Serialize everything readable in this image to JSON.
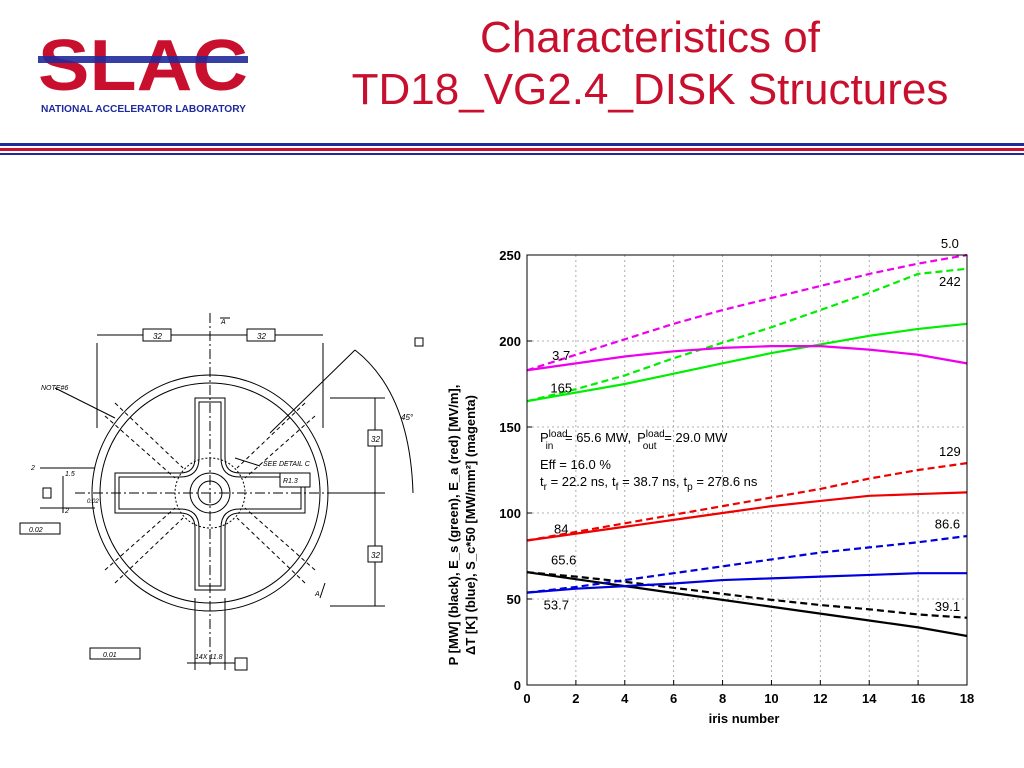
{
  "header": {
    "logo_word": "SLAC",
    "logo_sub": "NATIONAL ACCELERATOR LABORATORY",
    "title_line1": "Characteristics of",
    "title_line2": "TD18_VG2.4_DISK Structures",
    "brand_red": "#c8102e",
    "brand_blue": "#1f2a9c"
  },
  "drawing_labels": {
    "note": "NOTE#6",
    "dim_top_left": "32",
    "dim_top_right": "32",
    "dim_right_top": "32",
    "dim_right_bottom": "32",
    "detail": "SEE DETAIL C",
    "section_mark": "A",
    "angle": "45°",
    "dim_small1": "2",
    "dim_small2": "1.5",
    "dim_small3": "2",
    "dim_small4": "0.02",
    "tol_left": "0.02",
    "tol_bottom": "0.01",
    "bottom_dim": "14X 11.8",
    "radius_box": "R1.3"
  },
  "chart_data": {
    "type": "line",
    "xlabel": "iris number",
    "ylabel_line1": "P [MW] (black), E_s (green), E_a (red) [MV/m],",
    "ylabel_line2": "ΔT [K] (blue), S_c*50 [MW/mm²] (magenta)",
    "xlim": [
      0,
      18
    ],
    "ylim": [
      0,
      250
    ],
    "xticks": [
      0,
      2,
      4,
      6,
      8,
      10,
      12,
      14,
      16,
      18
    ],
    "yticks": [
      0,
      50,
      100,
      150,
      200,
      250
    ],
    "grid": true,
    "series": [
      {
        "color": "#000000",
        "style": "solid",
        "x": [
          0,
          2,
          4,
          6,
          8,
          10,
          12,
          14,
          16,
          18
        ],
        "y": [
          65.6,
          61.5,
          57.5,
          53.5,
          49.5,
          45.5,
          41.5,
          37.5,
          33.5,
          28.5
        ]
      },
      {
        "color": "#000000",
        "style": "dashed",
        "x": [
          0,
          2,
          4,
          6,
          8,
          10,
          12,
          14,
          16,
          18
        ],
        "y": [
          65.6,
          63,
          60,
          56.5,
          53,
          49.5,
          46.5,
          44,
          41,
          39.1
        ]
      },
      {
        "color": "#00ee00",
        "style": "solid",
        "x": [
          0,
          2,
          4,
          6,
          8,
          10,
          12,
          14,
          16,
          18
        ],
        "y": [
          165,
          170,
          175,
          181,
          187,
          193,
          198,
          203,
          207,
          210
        ]
      },
      {
        "color": "#00ee00",
        "style": "dashed",
        "x": [
          0,
          2,
          4,
          6,
          8,
          10,
          12,
          14,
          16,
          18
        ],
        "y": [
          165,
          172,
          180,
          190,
          199,
          208,
          218,
          228,
          239,
          242
        ]
      },
      {
        "color": "#ee0000",
        "style": "solid",
        "x": [
          0,
          2,
          4,
          6,
          8,
          10,
          12,
          14,
          16,
          18
        ],
        "y": [
          84,
          88,
          92,
          96,
          100,
          104,
          107,
          110,
          111,
          112
        ]
      },
      {
        "color": "#ee0000",
        "style": "dashed",
        "x": [
          0,
          2,
          4,
          6,
          8,
          10,
          12,
          14,
          16,
          18
        ],
        "y": [
          84,
          89,
          94,
          99,
          104,
          109,
          114,
          120,
          125,
          129
        ]
      },
      {
        "color": "#0000dd",
        "style": "solid",
        "x": [
          0,
          2,
          4,
          6,
          8,
          10,
          12,
          14,
          16,
          18
        ],
        "y": [
          53.7,
          56,
          57.5,
          59,
          61,
          62,
          63,
          64,
          65,
          65
        ]
      },
      {
        "color": "#0000dd",
        "style": "dashed",
        "x": [
          0,
          2,
          4,
          6,
          8,
          10,
          12,
          14,
          16,
          18
        ],
        "y": [
          53.7,
          57,
          61,
          65,
          69,
          73,
          77,
          80,
          83,
          86.6
        ]
      },
      {
        "color": "#ee00ee",
        "style": "solid",
        "x": [
          0,
          2,
          4,
          6,
          8,
          10,
          12,
          14,
          16,
          18
        ],
        "y": [
          183,
          187,
          191,
          194,
          196,
          197,
          197,
          195,
          192,
          187
        ]
      },
      {
        "color": "#ee00ee",
        "style": "dashed",
        "x": [
          0,
          2,
          4,
          6,
          8,
          10,
          12,
          14,
          16,
          18
        ],
        "y": [
          183,
          192,
          201,
          210,
          218,
          225,
          232,
          239,
          245,
          250
        ]
      }
    ],
    "point_labels": [
      {
        "text": "5.0",
        "x": 17.3,
        "y": 254
      },
      {
        "text": "242",
        "x": 17.3,
        "y": 232
      },
      {
        "text": "3.7",
        "x": 1.4,
        "y": 189
      },
      {
        "text": "165",
        "x": 1.4,
        "y": 170
      },
      {
        "text": "129",
        "x": 17.3,
        "y": 133
      },
      {
        "text": "84",
        "x": 1.4,
        "y": 88
      },
      {
        "text": "86.6",
        "x": 17.2,
        "y": 91
      },
      {
        "text": "65.6",
        "x": 1.5,
        "y": 70
      },
      {
        "text": "53.7",
        "x": 1.2,
        "y": 44
      },
      {
        "text": "39.1",
        "x": 17.2,
        "y": 43
      }
    ],
    "annotations": {
      "power": {
        "p": "P",
        "in_sup": "load",
        "in_sub": "in",
        "in_val": " =  65.6 MW,",
        "out_sup": "load",
        "out_sub": "out",
        "out_val": " =  29.0 MW"
      },
      "eff": "Eff = 16.0 %",
      "times": {
        "tr_sub": "r",
        "tr_val": " = 22.2 ns,",
        "tf_sub": "f",
        "tf_val": " = 38.7 ns,",
        "tp_sub": "p",
        "tp_val": " = 278.6 ns"
      }
    }
  }
}
